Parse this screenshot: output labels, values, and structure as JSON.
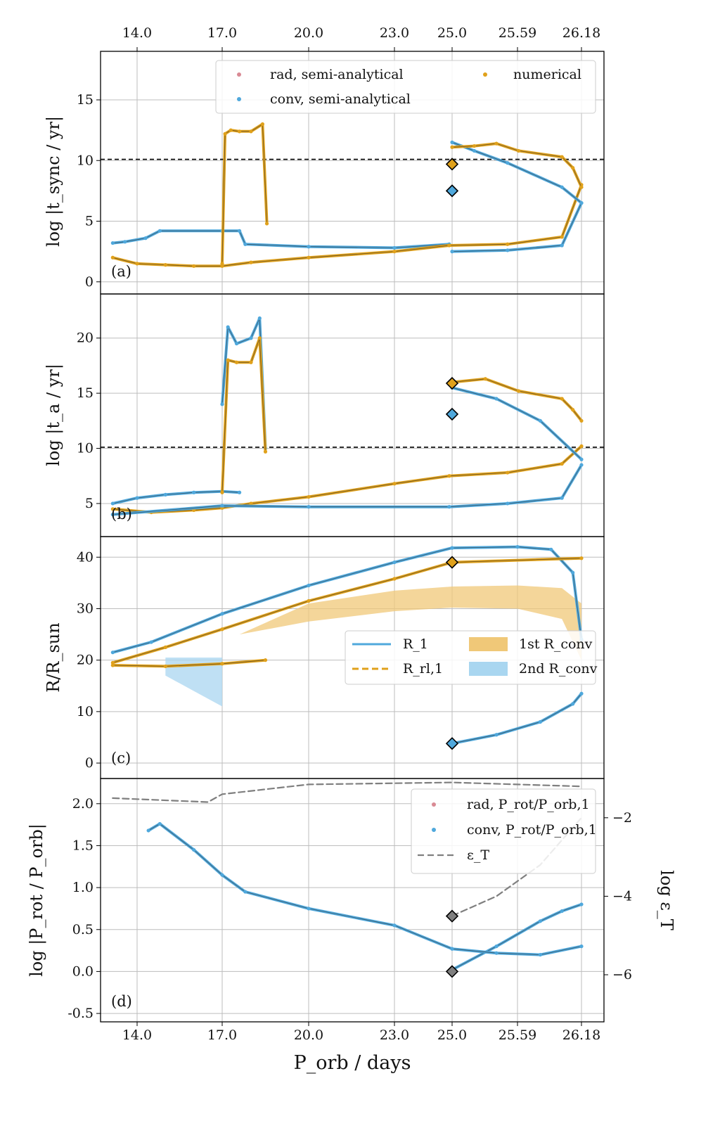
{
  "figure": {
    "xlabel": "P_orb / days",
    "top_tick_labels": [
      "14.0",
      "17.0",
      "20.0",
      "23.0",
      "25.0",
      "25.59",
      "26.18"
    ],
    "bottom_tick_labels": [
      "14.0",
      "17.0",
      "20.0",
      "23.0",
      "25.0",
      "25.59",
      "26.18"
    ]
  },
  "colors": {
    "blue": "#4fa8dc",
    "blue_light": "#a9d6f0",
    "orange": "#e0a11b",
    "orange_light": "#f0c878",
    "pink": "#d98a94",
    "grey": "#7f7f7f"
  },
  "chart_data": [
    {
      "id": "a",
      "type": "line",
      "panel_label": "(a)",
      "ylabel": "log |t_sync / yr|",
      "ylim": [
        -1,
        19
      ],
      "yticks": [
        0,
        5,
        10,
        15
      ],
      "hline": 10.1,
      "legend": [
        "rad, semi-analytical",
        "conv, semi-analytical",
        "numerical"
      ],
      "series": [
        {
          "name": "conv, semi-analytical (upper)",
          "color": "blue",
          "x": [
            13.6,
            13.8,
            14.3,
            14.8,
            17.0,
            17.6,
            17.8,
            20.0,
            23.0,
            24.9
          ],
          "y": [
            3.2,
            3.3,
            3.6,
            4.2,
            4.2,
            4.2,
            3.1,
            2.9,
            2.8,
            3.1
          ]
        },
        {
          "name": "numerical (lower)",
          "color": "orange",
          "x": [
            13.6,
            14.0,
            15.0,
            16.0,
            17.0,
            18.0,
            20.0,
            23.0,
            24.9,
            25.5,
            26.0,
            26.18
          ],
          "y": [
            2.0,
            1.5,
            1.4,
            1.3,
            1.3,
            1.6,
            2.0,
            2.5,
            3.0,
            3.1,
            3.7,
            8.0
          ]
        },
        {
          "name": "numerical (spike)",
          "color": "orange",
          "x": [
            17.0,
            17.1,
            17.3,
            17.6,
            18.0,
            18.4,
            18.55
          ],
          "y": [
            1.5,
            12.2,
            12.5,
            12.4,
            12.4,
            13.0,
            4.8
          ]
        },
        {
          "name": "conv, semi-analytical (upper branch)",
          "color": "blue",
          "x": [
            25.0,
            25.2,
            25.5,
            26.0,
            26.18
          ],
          "y": [
            11.5,
            10.8,
            9.8,
            7.8,
            6.5
          ]
        },
        {
          "name": "numerical (upper branch)",
          "color": "orange",
          "x": [
            25.0,
            25.2,
            25.4,
            25.6,
            26.0,
            26.1,
            26.18
          ],
          "y": [
            11.1,
            11.2,
            11.4,
            10.8,
            10.3,
            9.4,
            7.8
          ]
        },
        {
          "name": "conv, semi-analytical (lower branch)",
          "color": "blue",
          "x": [
            25.0,
            25.5,
            26.0,
            26.18
          ],
          "y": [
            2.5,
            2.6,
            3.0,
            6.5
          ]
        }
      ],
      "markers": [
        {
          "x": 25.0,
          "y": 9.7,
          "color": "orange"
        },
        {
          "x": 25.0,
          "y": 7.5,
          "color": "blue"
        }
      ]
    },
    {
      "id": "b",
      "type": "line",
      "panel_label": "(b)",
      "ylabel": "log |t_a / yr|",
      "ylim": [
        2,
        24
      ],
      "yticks": [
        5,
        10,
        15,
        20
      ],
      "hline": 10.1,
      "series": [
        {
          "name": "conv (upper)",
          "color": "blue",
          "x": [
            13.6,
            14.0,
            15.0,
            16.0,
            17.0,
            17.6
          ],
          "y": [
            5.0,
            5.5,
            5.8,
            6.0,
            6.1,
            6.0
          ]
        },
        {
          "name": "numerical (lower)",
          "color": "orange",
          "x": [
            13.6,
            14.5,
            16.0,
            17.0,
            18.0,
            20.0,
            23.0,
            24.9,
            25.5,
            26.0,
            26.18
          ],
          "y": [
            4.5,
            4.2,
            4.4,
            4.6,
            5.0,
            5.6,
            6.8,
            7.5,
            7.8,
            8.6,
            10.2
          ]
        },
        {
          "name": "conv (lower)",
          "color": "blue",
          "x": [
            13.6,
            17.0,
            20.0,
            24.9,
            25.5,
            26.0,
            26.18
          ],
          "y": [
            4.0,
            4.8,
            4.7,
            4.7,
            5.0,
            5.5,
            8.5
          ]
        },
        {
          "name": "numerical (spike upper)",
          "color": "blue",
          "x": [
            17.0,
            17.2,
            17.5,
            18.0,
            18.3,
            18.5
          ],
          "y": [
            14.0,
            21.0,
            19.5,
            20.0,
            21.8,
            10.0
          ]
        },
        {
          "name": "numerical (spike lower)",
          "color": "orange",
          "x": [
            17.0,
            17.2,
            17.5,
            18.0,
            18.3,
            18.5
          ],
          "y": [
            6.0,
            18.0,
            17.8,
            17.8,
            20.0,
            9.7
          ]
        },
        {
          "name": "numerical (upper branch)",
          "color": "orange",
          "x": [
            25.0,
            25.3,
            25.6,
            26.0,
            26.1,
            26.18
          ],
          "y": [
            16.0,
            16.3,
            15.2,
            14.5,
            13.5,
            12.5
          ]
        },
        {
          "name": "conv (upper branch)",
          "color": "blue",
          "x": [
            25.0,
            25.4,
            25.8,
            26.18
          ],
          "y": [
            15.5,
            14.5,
            12.5,
            9.0
          ]
        }
      ],
      "markers": [
        {
          "x": 25.0,
          "y": 15.9,
          "color": "orange"
        },
        {
          "x": 25.0,
          "y": 13.1,
          "color": "blue"
        }
      ]
    },
    {
      "id": "c",
      "type": "line",
      "panel_label": "(c)",
      "ylabel": "R/R_sun",
      "ylim": [
        -3,
        44
      ],
      "yticks": [
        0,
        10,
        20,
        30,
        40
      ],
      "legend": [
        "R_1",
        "R_rl,1",
        "1st R_conv",
        "2nd R_conv"
      ],
      "series": [
        {
          "name": "R_1",
          "color": "blue",
          "x": [
            13.6,
            14.5,
            17.0,
            20.0,
            23.0,
            25.0,
            25.59,
            25.9,
            26.1,
            26.18
          ],
          "y": [
            21.5,
            23.5,
            29.0,
            34.5,
            39.0,
            41.8,
            42.0,
            41.5,
            37.0,
            24.0
          ]
        },
        {
          "name": "R_rl,1 (upper)",
          "color": "orange",
          "x": [
            13.6,
            15.0,
            17.0,
            20.0,
            23.0,
            25.0,
            26.18
          ],
          "y": [
            19.5,
            22.5,
            26.0,
            31.5,
            35.8,
            39.0,
            39.8
          ]
        },
        {
          "name": "R_rl,1 (lower)",
          "color": "orange",
          "x": [
            13.6,
            15.0,
            17.0,
            18.5
          ],
          "y": [
            19.0,
            18.8,
            19.3,
            20.0
          ]
        },
        {
          "name": "2nd R_conv",
          "color": "blue",
          "x": [
            25.0,
            25.4,
            25.8,
            26.1,
            26.18
          ],
          "y": [
            3.8,
            5.5,
            8.0,
            11.5,
            13.5
          ]
        }
      ],
      "bands": [
        {
          "name": "1st R_conv",
          "color": "orange_light",
          "x": [
            17.6,
            20.0,
            23.0,
            25.0,
            25.59,
            26.0,
            26.18
          ],
          "lower": [
            25.0,
            27.5,
            29.5,
            30.2,
            30.0,
            28.0,
            20.0
          ],
          "upper": [
            25.0,
            31.0,
            33.5,
            34.3,
            34.5,
            34.0,
            31.0
          ]
        },
        {
          "name": "2nd R_conv (early)",
          "color": "blue_light",
          "x": [
            15.0,
            16.0,
            17.0
          ],
          "lower": [
            17.0,
            14.0,
            11.0
          ],
          "upper": [
            20.5,
            20.5,
            20.5
          ]
        }
      ],
      "markers": [
        {
          "x": 25.0,
          "y": 39.0,
          "color": "orange"
        },
        {
          "x": 25.0,
          "y": 3.8,
          "color": "blue"
        }
      ]
    },
    {
      "id": "d",
      "type": "line",
      "panel_label": "(d)",
      "ylabel": "log |P_rot / P_orb|",
      "ylim": [
        -0.6,
        2.3
      ],
      "yticks": [
        -0.5,
        0.0,
        0.5,
        1.0,
        1.5,
        2.0
      ],
      "right_ylabel": "log ε_T",
      "right_ylim": [
        -7.2,
        -1.0
      ],
      "right_yticks": [
        -6,
        -4,
        -2
      ],
      "legend": [
        "rad, P_rot/P_orb,1",
        "conv, P_rot/P_orb,1",
        "ε_T"
      ],
      "series": [
        {
          "name": "conv, P_rot/P_orb,1 (main)",
          "color": "blue",
          "x": [
            14.4,
            14.8,
            16.0,
            17.0,
            17.8,
            20.0,
            23.0,
            25.0
          ],
          "y": [
            1.68,
            1.76,
            1.45,
            1.15,
            0.95,
            0.75,
            0.55,
            0.27
          ]
        },
        {
          "name": "conv, P_rot/P_orb,1 (upper branch)",
          "color": "blue",
          "x": [
            25.0,
            25.4,
            25.8,
            26.0,
            26.18
          ],
          "y": [
            0.02,
            0.3,
            0.6,
            0.72,
            0.8
          ]
        },
        {
          "name": "conv, P_rot/P_orb,1 (lower)",
          "color": "blue",
          "x": [
            25.0,
            25.4,
            25.8,
            26.18
          ],
          "y": [
            0.27,
            0.22,
            0.2,
            0.3
          ]
        },
        {
          "name": "ε_T",
          "color": "grey",
          "dashed": true,
          "axis": "right",
          "x": [
            13.6,
            16.5,
            17.0,
            20.0,
            25.0,
            26.18
          ],
          "y": [
            -1.5,
            -1.6,
            -1.4,
            -1.15,
            -1.1,
            -1.2
          ]
        },
        {
          "name": "ε_T (branch)",
          "color": "grey",
          "dashed": true,
          "axis": "right",
          "x": [
            25.0,
            25.4,
            25.8,
            26.18
          ],
          "y": [
            -4.5,
            -4.0,
            -3.2,
            -2.0
          ]
        }
      ],
      "markers": [
        {
          "x": 25.0,
          "y": 0.66,
          "color": "grey"
        },
        {
          "x": 25.0,
          "y": 0.0,
          "color": "grey"
        }
      ]
    }
  ]
}
